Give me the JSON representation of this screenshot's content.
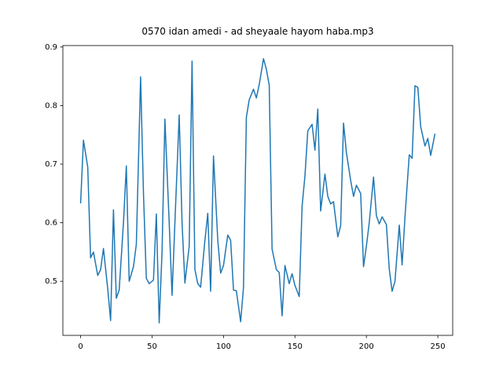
{
  "chart_data": {
    "type": "line",
    "title": "0570 idan amedi - ad sheyaale hayom haba.mp3",
    "x": [
      0,
      2,
      5,
      7,
      9,
      12,
      14,
      16,
      19,
      21,
      23,
      25,
      27,
      30,
      32,
      34,
      37,
      39,
      42,
      44,
      46,
      48,
      51,
      53,
      55,
      57,
      59,
      62,
      64,
      66,
      69,
      71,
      73,
      76,
      78,
      80,
      82,
      84,
      87,
      89,
      91,
      93,
      96,
      98,
      100,
      103,
      105,
      107,
      109,
      112,
      114,
      116,
      118,
      121,
      123,
      125,
      128,
      130,
      132,
      134,
      137,
      139,
      141,
      143,
      146,
      148,
      150,
      153,
      155,
      157,
      159,
      162,
      164,
      166,
      168,
      171,
      173,
      175,
      177,
      180,
      182,
      184,
      186,
      189,
      191,
      193,
      196,
      198,
      200,
      202,
      205,
      207,
      209,
      211,
      214,
      216,
      218,
      220,
      223,
      225,
      227,
      230,
      232,
      234,
      236,
      238,
      241,
      243,
      245,
      248
    ],
    "series": [
      {
        "color": "#1f77b4",
        "values": [
          0.633,
          0.741,
          0.695,
          0.54,
          0.55,
          0.51,
          0.52,
          0.556,
          0.487,
          0.433,
          0.622,
          0.471,
          0.485,
          0.6,
          0.697,
          0.5,
          0.525,
          0.563,
          0.849,
          0.65,
          0.505,
          0.496,
          0.502,
          0.615,
          0.429,
          0.55,
          0.777,
          0.6,
          0.476,
          0.6,
          0.784,
          0.6,
          0.497,
          0.56,
          0.876,
          0.52,
          0.496,
          0.49,
          0.57,
          0.616,
          0.483,
          0.714,
          0.57,
          0.514,
          0.527,
          0.579,
          0.57,
          0.485,
          0.484,
          0.431,
          0.49,
          0.78,
          0.81,
          0.828,
          0.813,
          0.836,
          0.88,
          0.862,
          0.835,
          0.555,
          0.52,
          0.515,
          0.441,
          0.527,
          0.496,
          0.513,
          0.493,
          0.474,
          0.628,
          0.68,
          0.757,
          0.768,
          0.724,
          0.794,
          0.62,
          0.683,
          0.645,
          0.632,
          0.636,
          0.576,
          0.595,
          0.77,
          0.72,
          0.672,
          0.645,
          0.664,
          0.65,
          0.525,
          0.56,
          0.6,
          0.678,
          0.612,
          0.598,
          0.61,
          0.597,
          0.521,
          0.483,
          0.5,
          0.596,
          0.528,
          0.61,
          0.716,
          0.71,
          0.834,
          0.831,
          0.764,
          0.731,
          0.744,
          0.715,
          0.752
        ]
      }
    ],
    "xlim": [
      -12.4,
      260.4
    ],
    "xticks": [
      0,
      50,
      100,
      150,
      200,
      250
    ],
    "ylim": [
      0.4077,
      0.9025
    ],
    "yticks": [
      0.5,
      0.6,
      0.7,
      0.8,
      0.9
    ]
  }
}
